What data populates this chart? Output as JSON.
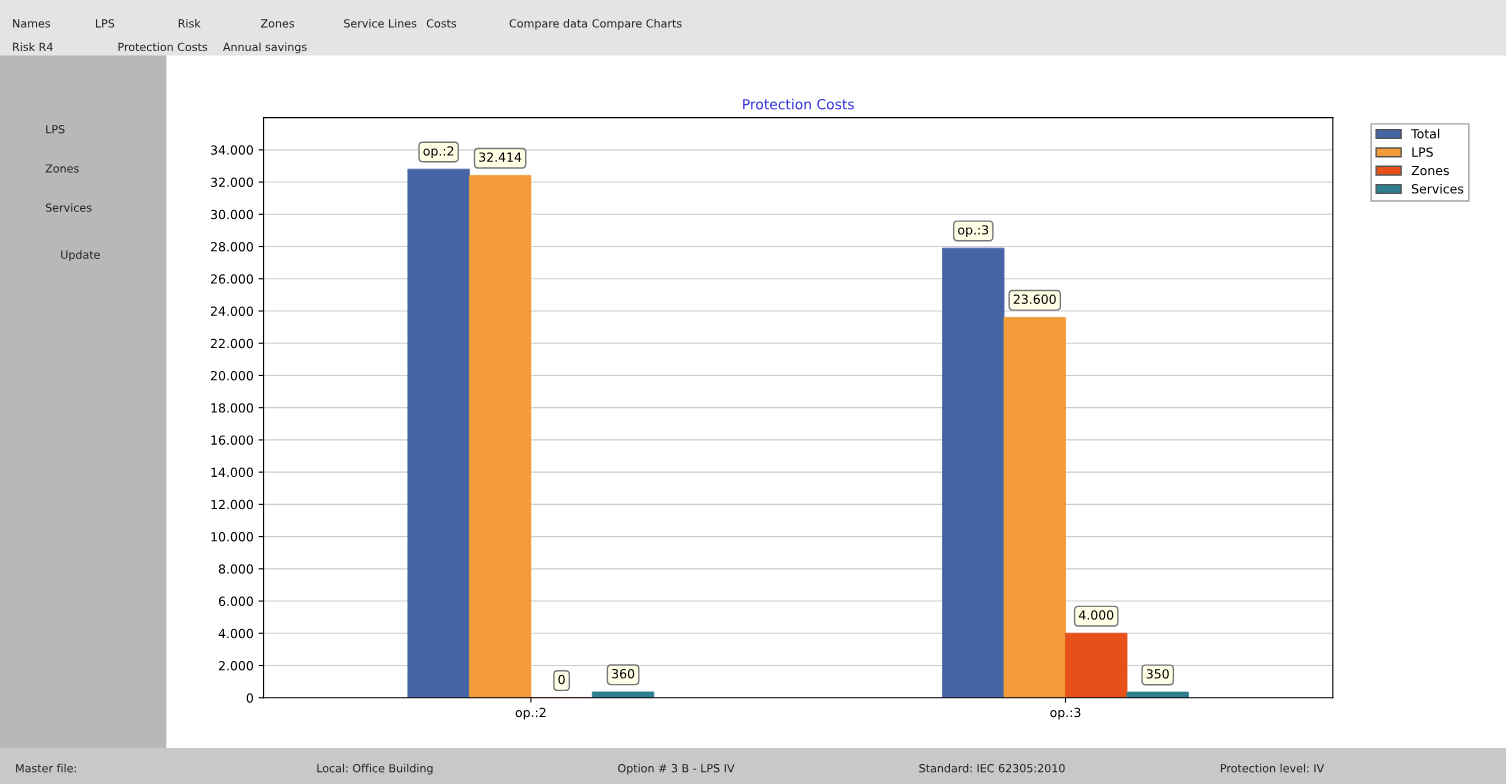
{
  "chart_data": {
    "type": "bar",
    "title": "Protection Costs",
    "categories": [
      "op.:2",
      "op.:3"
    ],
    "series": [
      {
        "name": "Total",
        "color": "#4565a5",
        "values": [
          32800,
          27900
        ]
      },
      {
        "name": "LPS",
        "color": "#f29b38",
        "values": [
          32414,
          23600
        ],
        "value_labels": [
          "32.414",
          "23.600"
        ]
      },
      {
        "name": "Zones",
        "color": "#e8501a",
        "values": [
          0,
          4000
        ],
        "value_labels": [
          "0",
          "4.000"
        ]
      },
      {
        "name": "Services",
        "color": "#2e7f8f",
        "values": [
          360,
          350
        ],
        "value_labels": [
          "360",
          "350"
        ]
      }
    ],
    "ylim": [
      0,
      36000
    ],
    "yticks": [
      {
        "value": 0,
        "label": "0"
      },
      {
        "value": 2000,
        "label": "2.000"
      },
      {
        "value": 4000,
        "label": "4.000"
      },
      {
        "value": 6000,
        "label": "6.000"
      },
      {
        "value": 8000,
        "label": "8.000"
      },
      {
        "value": 10000,
        "label": "10.000"
      },
      {
        "value": 12000,
        "label": "12.000"
      },
      {
        "value": 14000,
        "label": "14.000"
      },
      {
        "value": 16000,
        "label": "16.000"
      },
      {
        "value": 18000,
        "label": "18.000"
      },
      {
        "value": 20000,
        "label": "20.000"
      },
      {
        "value": 22000,
        "label": "22.000"
      },
      {
        "value": 24000,
        "label": "24.000"
      },
      {
        "value": 26000,
        "label": "26.000"
      },
      {
        "value": 28000,
        "label": "28.000"
      },
      {
        "value": 30000,
        "label": "30.000"
      },
      {
        "value": 32000,
        "label": "32.000"
      },
      {
        "value": 34000,
        "label": "34.000"
      }
    ],
    "grid": "y",
    "legend": "top right",
    "annotations": [
      "op.:2",
      "op.:3",
      "Names",
      "LPS",
      "Risk",
      "Zones",
      "Service Lines",
      "Costs",
      "Compare data",
      "Compare Charts",
      "Risk R4",
      "Protection Costs",
      "Annual savings",
      "LPS",
      "Zones",
      "Services",
      "Update",
      "Master file:",
      "Local: Office Building",
      "Option # 3 B - LPS IV",
      "Standard: IEC 62305:2010",
      "Protection level: IV"
    ]
  }
}
